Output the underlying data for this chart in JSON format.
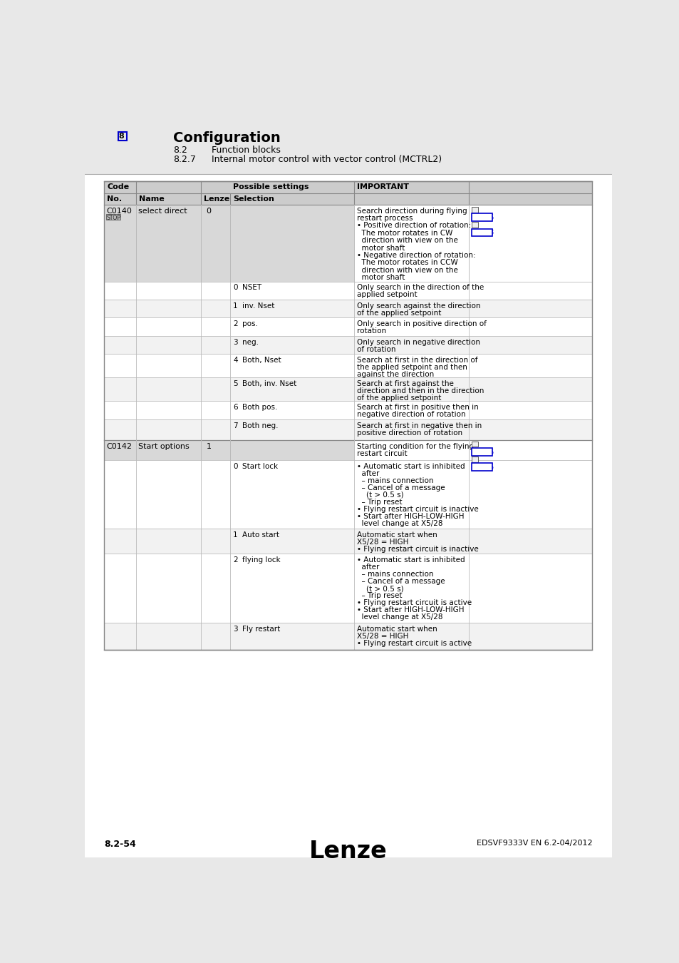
{
  "page_bg": "#e8e8e8",
  "content_bg": "#ffffff",
  "table_header_bg": "#cccccc",
  "subheader_bg": "#d8d8d8",
  "row_bg_even": "#ffffff",
  "row_bg_odd": "#f2f2f2",
  "title": "Configuration",
  "subtitle1": "8.2",
  "subtitle1_text": "Function blocks",
  "subtitle2": "8.2.7",
  "subtitle2_text": "Internal motor control with vector control (MCTRL2)",
  "chapter_num": "8",
  "footer_left": "8.2-54",
  "footer_center": "Lenze",
  "footer_right": "EDSVF9333V EN 6.2-04/2012",
  "blue_box_color": "#0000cc",
  "dark_border": "#888888",
  "light_border": "#bbbbbb",
  "text_color": "#000000"
}
